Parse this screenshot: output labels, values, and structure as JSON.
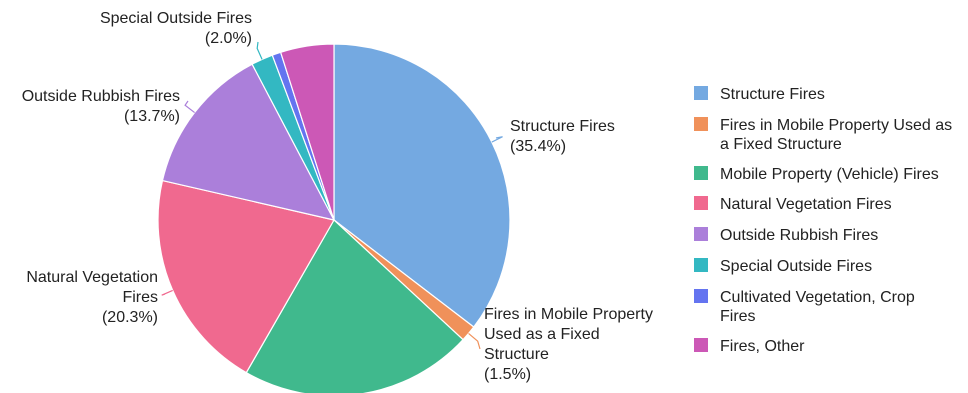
{
  "chart_data": {
    "type": "pie",
    "start_angle": "12 o'clock",
    "direction": "clockwise",
    "legend_placement": "right",
    "slices": [
      {
        "name": "Structure Fires",
        "value": 35.4,
        "color": "#74a9e1",
        "legend_lines": [
          "Structure Fires"
        ],
        "label_lines": [
          "Structure Fires",
          "(35.4%)"
        ]
      },
      {
        "name": "Fires in Mobile Property Used as a Fixed Structure",
        "value": 1.5,
        "color": "#f0915a",
        "legend_lines": [
          "Fires in Mobile Property Used as",
          "a Fixed Structure"
        ],
        "label_lines": [
          "Fires in Mobile Property",
          "Used as a Fixed",
          "Structure",
          "(1.5%)"
        ]
      },
      {
        "name": "Mobile Property (Vehicle) Fires",
        "value": 21.4,
        "color": "#40b98d",
        "legend_lines": [
          "Mobile Property (Vehicle) Fires"
        ],
        "label_lines": []
      },
      {
        "name": "Natural Vegetation Fires",
        "value": 20.3,
        "color": "#f0698f",
        "legend_lines": [
          "Natural Vegetation Fires"
        ],
        "label_lines": [
          "Natural Vegetation",
          "Fires",
          "(20.3%)"
        ]
      },
      {
        "name": "Outside Rubbish Fires",
        "value": 13.7,
        "color": "#ab7fda",
        "legend_lines": [
          "Outside Rubbish Fires"
        ],
        "label_lines": [
          "Outside Rubbish Fires",
          "(13.7%)"
        ]
      },
      {
        "name": "Special Outside Fires",
        "value": 2.0,
        "color": "#33b8c2",
        "legend_lines": [
          "Special Outside Fires"
        ],
        "label_lines": [
          "Special Outside Fires",
          "(2.0%)"
        ]
      },
      {
        "name": "Cultivated Vegetation, Crop Fires",
        "value": 0.8,
        "color": "#6474f0",
        "legend_lines": [
          "Cultivated Vegetation, Crop",
          "Fires"
        ],
        "label_lines": []
      },
      {
        "name": "Fires, Other",
        "value": 4.9,
        "color": "#cc58b6",
        "legend_lines": [
          "Fires, Other"
        ],
        "label_lines": []
      }
    ]
  }
}
